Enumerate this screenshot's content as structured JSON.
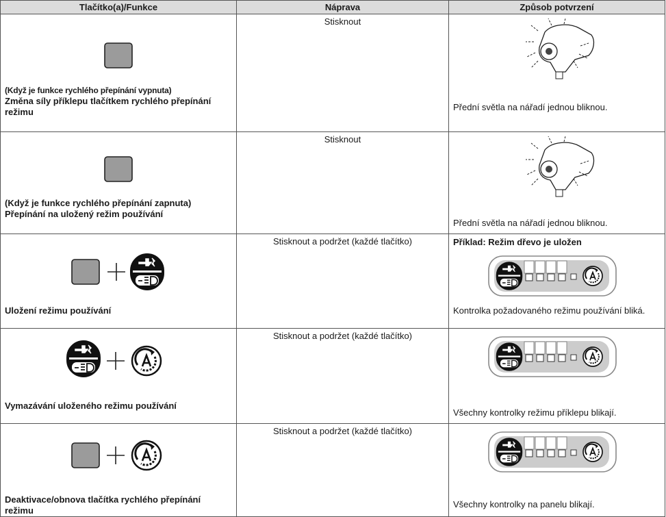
{
  "table": {
    "header": [
      "Tlačítko(a)/Funkce",
      "Náprava",
      "Způsob potvrzení"
    ],
    "rows": [
      {
        "function": [
          "(Když je funkce rychlého přepínání vypnuta)",
          "Změna síly příklepu tlačítkem rychlého přepínání režimu"
        ],
        "remedy": "Stisknout",
        "confirmation": [
          "Přední světla na nářadí jednou bliknou."
        ]
      },
      {
        "function": [
          "(Když je funkce rychlého přepínání zapnuta)",
          "Přepínání na uložený režim používání"
        ],
        "remedy": "Stisknout",
        "confirmation": [
          "Přední světla na nářadí jednou bliknou."
        ]
      },
      {
        "function": [
          "Uložení režimu používání"
        ],
        "remedy": "Stisknout a podržet (každé tlačítko)",
        "confirmation": [
          "Příklad: Režim dřevo je uložen",
          "Kontrolka požadovaného režimu používání bliká."
        ]
      },
      {
        "function": [
          "Vymazávání uloženého režimu používání"
        ],
        "remedy": "Stisknout a podržet (každé tlačítko)",
        "confirmation": [
          "Všechny kontrolky režimu příklepu blikají."
        ]
      },
      {
        "function": [
          "Deaktivace/obnova tlačítka rychlého přepínání režimu"
        ],
        "remedy": "Stisknout a podržet (každé tlačítko)",
        "confirmation": [
          "Všechny kontrolky na panelu blikají."
        ]
      }
    ]
  }
}
